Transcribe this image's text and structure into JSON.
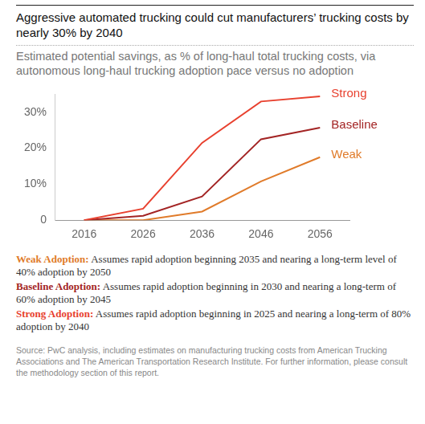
{
  "chart_data": {
    "type": "line",
    "title": "Aggressive automated trucking could cut manufacturers’ trucking costs by nearly 30% by 2040",
    "subtitle": "Estimated potential savings, as % of long-haul total trucking costs, via autonomous long-haul trucking adoption pace versus no adoption",
    "categories": [
      "2016",
      "2026",
      "2036",
      "2046",
      "2056"
    ],
    "series": [
      {
        "name": "Strong",
        "color": "#e8412f",
        "values": [
          0,
          3.2,
          21.5,
          33,
          34.4
        ]
      },
      {
        "name": "Baseline",
        "color": "#a32424",
        "values": [
          0,
          1.2,
          6.6,
          22.5,
          25.7
        ]
      },
      {
        "name": "Weak",
        "color": "#e07b2a",
        "values": [
          0,
          0,
          2.4,
          10.8,
          17.5
        ]
      }
    ],
    "ylim": [
      0,
      35
    ],
    "yticks": [
      0,
      {
        "value": 10,
        "label": "10%"
      },
      {
        "value": 20,
        "label": "20%"
      },
      {
        "value": 30,
        "label": "30%"
      }
    ],
    "grid": false,
    "notes": [
      {
        "label": "Weak Adoption:",
        "color": "#e07b2a",
        "text": "Assumes rapid adoption beginning 2035 and nearing a long-term level of 40% adoption by 2050"
      },
      {
        "label": "Baseline Adoption:",
        "color": "#a32424",
        "text": "Assumes rapid adoption beginning in 2030 and nearing a long-term of 60% adoption by 2045"
      },
      {
        "label": "Strong Adoption:",
        "color": "#e8412f",
        "text": "Assumes rapid adoption beginning in 2025 and nearing a long-term of 80% adoption by 2040"
      }
    ],
    "source": "Source: PwC analysis, including estimates on manufacturing trucking costs from American Trucking Associations and The American Transportation Research Institute. For further information, please consult the methodology section of this report."
  }
}
